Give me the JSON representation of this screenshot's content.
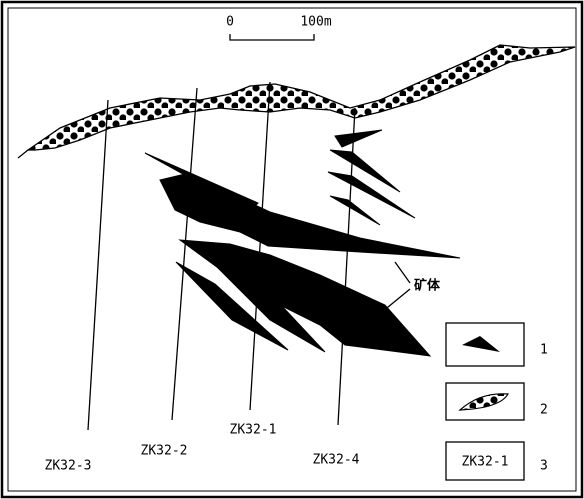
{
  "scale_bar": {
    "start": "0",
    "end": "100m"
  },
  "drill_holes": [
    {
      "label": "ZK32-3"
    },
    {
      "label": "ZK32-2"
    },
    {
      "label": "ZK32-1"
    },
    {
      "label": "ZK32-4"
    }
  ],
  "annotation": "矿体",
  "legend": [
    {
      "number": "1"
    },
    {
      "number": "2"
    },
    {
      "number": "3",
      "sample": "ZK32-1"
    }
  ]
}
